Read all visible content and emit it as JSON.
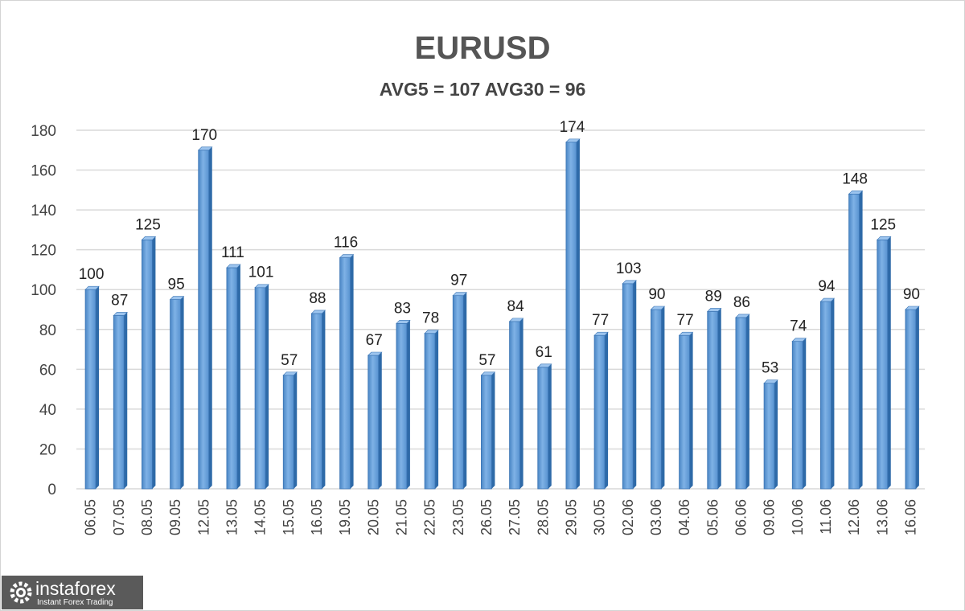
{
  "logo": {
    "brand": "instaforex",
    "tagline": "Instant Forex Trading"
  },
  "chart_data": {
    "type": "bar",
    "title": "EURUSD",
    "subtitle": "AVG5 = 107 AVG30 = 96",
    "xlabel": "",
    "ylabel": "",
    "ylim": [
      0,
      180
    ],
    "yticks": [
      0,
      20,
      40,
      60,
      80,
      100,
      120,
      140,
      160,
      180
    ],
    "grid": true,
    "bar_color": "#5b9bd5",
    "categories": [
      "06.05",
      "07.05",
      "08.05",
      "09.05",
      "12.05",
      "13.05",
      "14.05",
      "15.05",
      "16.05",
      "19.05",
      "20.05",
      "21.05",
      "22.05",
      "23.05",
      "26.05",
      "27.05",
      "28.05",
      "29.05",
      "30.05",
      "02.06",
      "03.06",
      "04.06",
      "05.06",
      "06.06",
      "09.06",
      "10.06",
      "11.06",
      "12.06",
      "13.06",
      "16.06"
    ],
    "values": [
      100,
      87,
      125,
      95,
      170,
      111,
      101,
      57,
      88,
      116,
      67,
      83,
      78,
      97,
      57,
      84,
      61,
      174,
      77,
      103,
      90,
      77,
      89,
      86,
      53,
      74,
      94,
      148,
      125,
      90
    ]
  }
}
